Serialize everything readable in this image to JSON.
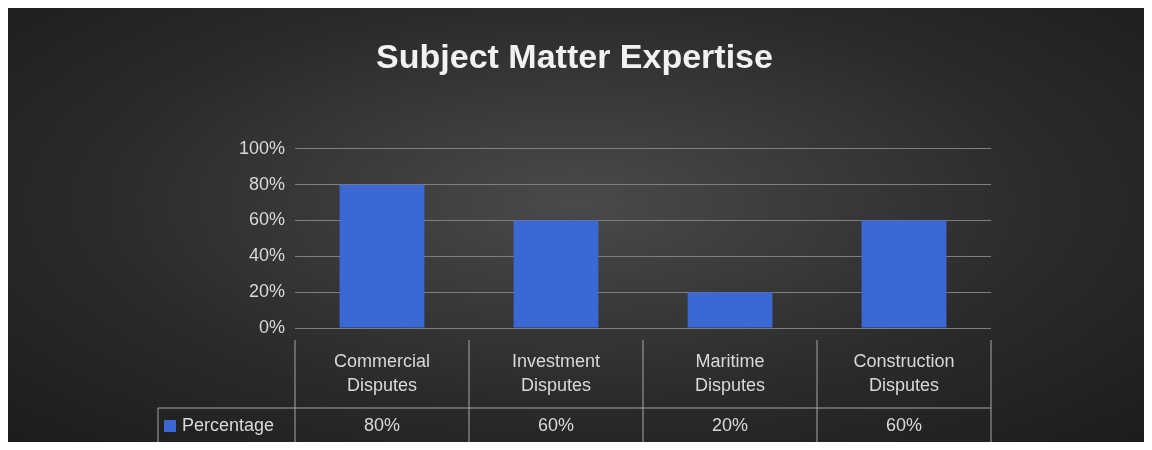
{
  "chart_data": {
    "type": "bar",
    "title": "Subject Matter Expertise",
    "categories": [
      "Commercial Disputes",
      "Investment Disputes",
      "Maritime Disputes",
      "Construction Disputes"
    ],
    "series": [
      {
        "name": "Percentage",
        "color": "#3b68d2",
        "values": [
          80,
          60,
          20,
          60
        ],
        "value_labels": [
          "80%",
          "60%",
          "20%",
          "60%"
        ]
      }
    ],
    "ylim": [
      0,
      100
    ],
    "yticks": [
      {
        "value": 0,
        "label": "0%"
      },
      {
        "value": 20,
        "label": "20%"
      },
      {
        "value": 40,
        "label": "40%"
      },
      {
        "value": 60,
        "label": "60%"
      },
      {
        "value": 80,
        "label": "80%"
      },
      {
        "value": 100,
        "label": "100%"
      }
    ],
    "grid": "y",
    "legend": "bottom"
  }
}
